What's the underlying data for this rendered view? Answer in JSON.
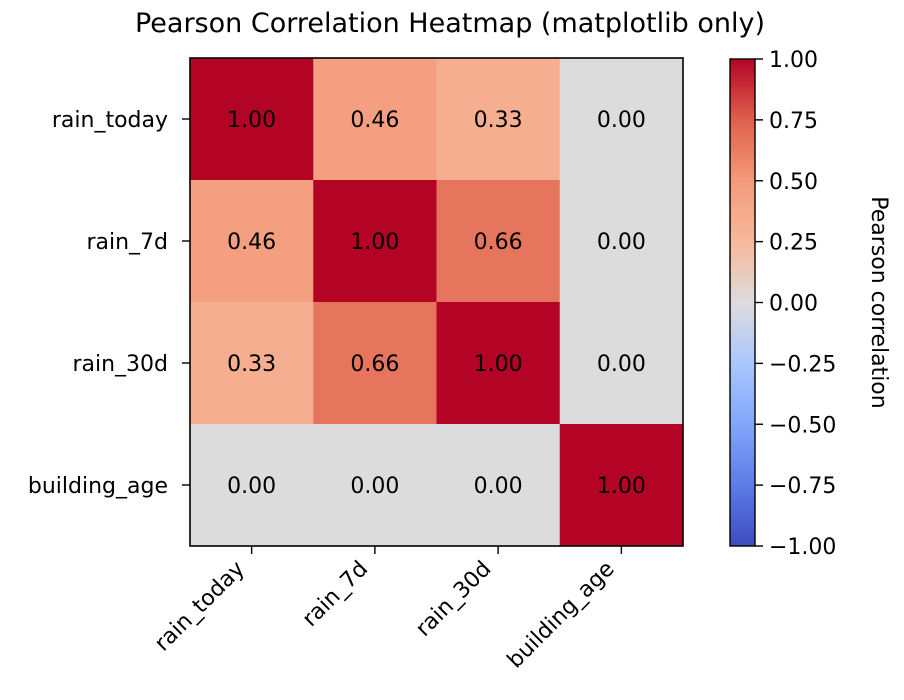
{
  "chart_data": {
    "type": "heatmap",
    "title": "Pearson Correlation Heatmap (matplotlib only)",
    "xlabel": "",
    "ylabel": "",
    "x_categories": [
      "rain_today",
      "rain_7d",
      "rain_30d",
      "building_age"
    ],
    "y_categories": [
      "rain_today",
      "rain_7d",
      "rain_30d",
      "building_age"
    ],
    "values": [
      [
        1.0,
        0.46,
        0.33,
        0.0
      ],
      [
        0.46,
        1.0,
        0.66,
        0.0
      ],
      [
        0.33,
        0.66,
        1.0,
        0.0
      ],
      [
        0.0,
        0.0,
        0.0,
        1.0
      ]
    ],
    "value_format": "0.00",
    "colormap": "coolwarm",
    "vmin": -1.0,
    "vmax": 1.0,
    "colorbar": {
      "label": "Pearson correlation",
      "ticks": [
        1.0,
        0.75,
        0.5,
        0.25,
        0.0,
        -0.25,
        -0.5,
        -0.75,
        -1.0
      ],
      "tick_labels": [
        "1.00",
        "0.75",
        "0.50",
        "0.25",
        "0.00",
        "−0.25",
        "−0.50",
        "−0.75",
        "−1.00"
      ],
      "placement": "right"
    },
    "x_tick_rotation_deg": 45,
    "grid": false,
    "colormap_stops": [
      {
        "v": -1.0,
        "color": "#3b4cc0"
      },
      {
        "v": -0.75,
        "color": "#5d7ce6"
      },
      {
        "v": -0.5,
        "color": "#82a6fb"
      },
      {
        "v": -0.25,
        "color": "#aac7fd"
      },
      {
        "v": 0.0,
        "color": "#dddcdc"
      },
      {
        "v": 0.25,
        "color": "#f7b89c"
      },
      {
        "v": 0.5,
        "color": "#f49a7b"
      },
      {
        "v": 0.75,
        "color": "#de604d"
      },
      {
        "v": 1.0,
        "color": "#b40426"
      }
    ]
  }
}
